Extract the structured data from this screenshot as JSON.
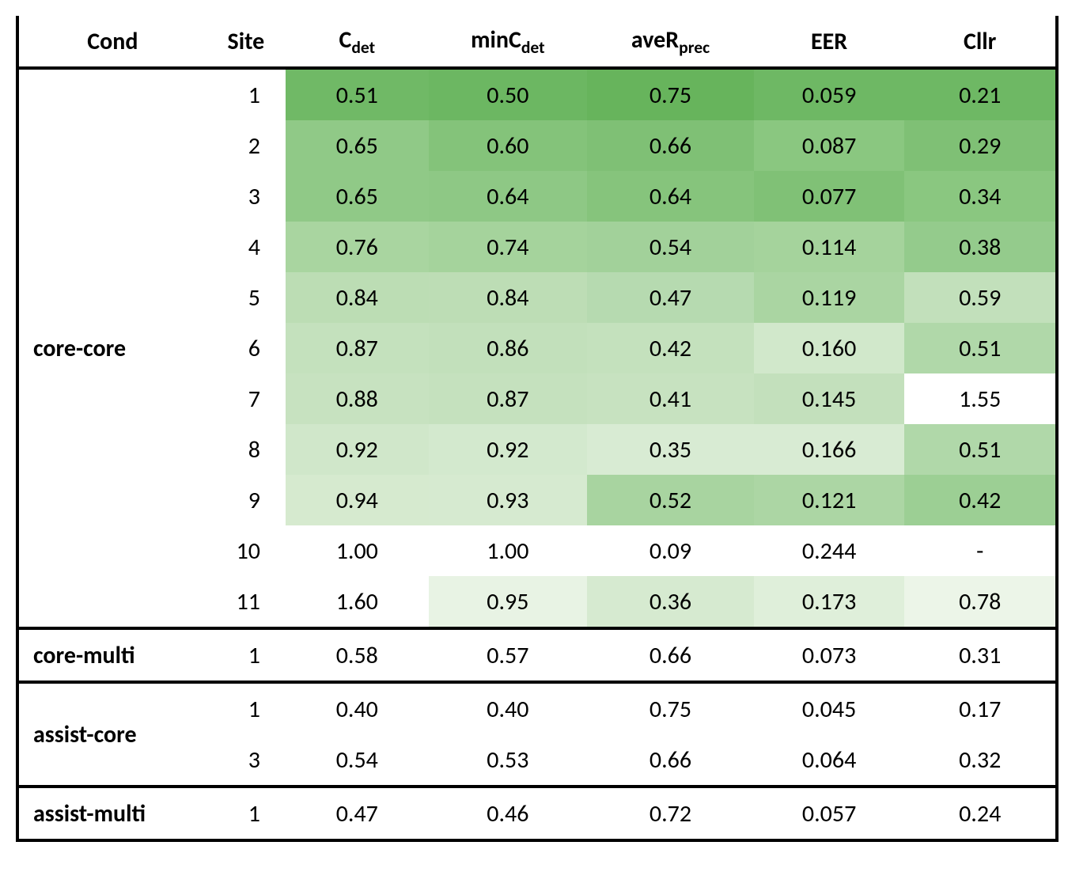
{
  "columns": {
    "cond": {
      "label": "Cond"
    },
    "site": {
      "label": "Site"
    },
    "cdet": {
      "label_main": "C",
      "label_sub": "det"
    },
    "mincdet": {
      "label_main": "minC",
      "label_sub": "det"
    },
    "averp": {
      "label_main": "aveR",
      "label_sub": "prec"
    },
    "eer": {
      "label": "EER"
    },
    "cllr": {
      "label": "Cllr"
    }
  },
  "heatmap_palette_note": "per-cell background hex captured directly; white = #ffffff",
  "groups": [
    {
      "cond": "core-core",
      "separator_before": false,
      "rows": [
        {
          "site": "1",
          "cdet": {
            "v": "0.51",
            "bg": "#70b966"
          },
          "mincdet": {
            "v": "0.50",
            "bg": "#6cb762"
          },
          "averp": {
            "v": "0.75",
            "bg": "#67b45c"
          },
          "eer": {
            "v": "0.059",
            "bg": "#6eb864"
          },
          "cllr": {
            "v": "0.21",
            "bg": "#6eb864"
          }
        },
        {
          "site": "2",
          "cdet": {
            "v": "0.65",
            "bg": "#90c987"
          },
          "mincdet": {
            "v": "0.60",
            "bg": "#84c37a"
          },
          "averp": {
            "v": "0.66",
            "bg": "#7fc075"
          },
          "eer": {
            "v": "0.087",
            "bg": "#8ac780"
          },
          "cllr": {
            "v": "0.29",
            "bg": "#7fc075"
          }
        },
        {
          "site": "3",
          "cdet": {
            "v": "0.65",
            "bg": "#90c987"
          },
          "mincdet": {
            "v": "0.64",
            "bg": "#8ec885"
          },
          "averp": {
            "v": "0.64",
            "bg": "#86c47c"
          },
          "eer": {
            "v": "0.077",
            "bg": "#80c176"
          },
          "cllr": {
            "v": "0.34",
            "bg": "#8ac780"
          }
        },
        {
          "site": "4",
          "cdet": {
            "v": "0.76",
            "bg": "#a9d5a0"
          },
          "mincdet": {
            "v": "0.74",
            "bg": "#a5d39c"
          },
          "averp": {
            "v": "0.54",
            "bg": "#a2d19a"
          },
          "eer": {
            "v": "0.114",
            "bg": "#a5d39c"
          },
          "cllr": {
            "v": "0.38",
            "bg": "#94cb8c"
          }
        },
        {
          "site": "5",
          "cdet": {
            "v": "0.84",
            "bg": "#bcddb4"
          },
          "mincdet": {
            "v": "0.84",
            "bg": "#bdddb5"
          },
          "averp": {
            "v": "0.47",
            "bg": "#b6dab0"
          },
          "eer": {
            "v": "0.119",
            "bg": "#aad5a2"
          },
          "cllr": {
            "v": "0.59",
            "bg": "#c2e0bb"
          }
        },
        {
          "site": "6",
          "cdet": {
            "v": "0.87",
            "bg": "#c4e1bd"
          },
          "mincdet": {
            "v": "0.86",
            "bg": "#c2e0bb"
          },
          "averp": {
            "v": "0.42",
            "bg": "#c4e1bd"
          },
          "eer": {
            "v": "0.160",
            "bg": "#d1e8cb"
          },
          "cllr": {
            "v": "0.51",
            "bg": "#b0d8a9"
          }
        },
        {
          "site": "7",
          "cdet": {
            "v": "0.88",
            "bg": "#c7e2c0"
          },
          "mincdet": {
            "v": "0.87",
            "bg": "#c5e1be"
          },
          "averp": {
            "v": "0.41",
            "bg": "#c7e2c0"
          },
          "eer": {
            "v": "0.145",
            "bg": "#c3e0bc"
          },
          "cllr": {
            "v": "1.55",
            "bg": "#ffffff"
          }
        },
        {
          "site": "8",
          "cdet": {
            "v": "0.92",
            "bg": "#d0e7ca"
          },
          "mincdet": {
            "v": "0.92",
            "bg": "#d3e9ce"
          },
          "averp": {
            "v": "0.35",
            "bg": "#d8ebd3"
          },
          "eer": {
            "v": "0.166",
            "bg": "#d8ebd3"
          },
          "cllr": {
            "v": "0.51",
            "bg": "#b0d8a9"
          }
        },
        {
          "site": "9",
          "cdet": {
            "v": "0.94",
            "bg": "#d6eacf"
          },
          "mincdet": {
            "v": "0.93",
            "bg": "#d6ead0"
          },
          "averp": {
            "v": "0.52",
            "bg": "#a8d4a0"
          },
          "eer": {
            "v": "0.121",
            "bg": "#acd6a4"
          },
          "cllr": {
            "v": "0.42",
            "bg": "#9ccf94"
          }
        },
        {
          "site": "10",
          "cdet": {
            "v": "1.00",
            "bg": "#ffffff"
          },
          "mincdet": {
            "v": "1.00",
            "bg": "#ffffff"
          },
          "averp": {
            "v": "0.09",
            "bg": "#ffffff"
          },
          "eer": {
            "v": "0.244",
            "bg": "#ffffff"
          },
          "cllr": {
            "v": "-",
            "bg": "#ffffff"
          }
        },
        {
          "site": "11",
          "cdet": {
            "v": "1.60",
            "bg": "#ffffff"
          },
          "mincdet": {
            "v": "0.95",
            "bg": "#e8f3e4"
          },
          "averp": {
            "v": "0.36",
            "bg": "#d6ead0"
          },
          "eer": {
            "v": "0.173",
            "bg": "#dfefda"
          },
          "cllr": {
            "v": "0.78",
            "bg": "#ecf5e8"
          }
        }
      ]
    },
    {
      "cond": "core-multi",
      "separator_before": true,
      "rows": [
        {
          "site": "1",
          "cdet": {
            "v": "0.58",
            "bg": "#ffffff"
          },
          "mincdet": {
            "v": "0.57",
            "bg": "#ffffff"
          },
          "averp": {
            "v": "0.66",
            "bg": "#ffffff"
          },
          "eer": {
            "v": "0.073",
            "bg": "#ffffff"
          },
          "cllr": {
            "v": "0.31",
            "bg": "#ffffff"
          }
        }
      ]
    },
    {
      "cond": "assist-core",
      "separator_before": true,
      "rows": [
        {
          "site": "1",
          "cdet": {
            "v": "0.40",
            "bg": "#ffffff"
          },
          "mincdet": {
            "v": "0.40",
            "bg": "#ffffff"
          },
          "averp": {
            "v": "0.75",
            "bg": "#ffffff"
          },
          "eer": {
            "v": "0.045",
            "bg": "#ffffff"
          },
          "cllr": {
            "v": "0.17",
            "bg": "#ffffff"
          }
        },
        {
          "site": "3",
          "cdet": {
            "v": "0.54",
            "bg": "#ffffff"
          },
          "mincdet": {
            "v": "0.53",
            "bg": "#ffffff"
          },
          "averp": {
            "v": "0.66",
            "bg": "#ffffff"
          },
          "eer": {
            "v": "0.064",
            "bg": "#ffffff"
          },
          "cllr": {
            "v": "0.32",
            "bg": "#ffffff"
          }
        }
      ]
    },
    {
      "cond": "assist-multi",
      "separator_before": true,
      "rows": [
        {
          "site": "1",
          "cdet": {
            "v": "0.47",
            "bg": "#ffffff"
          },
          "mincdet": {
            "v": "0.46",
            "bg": "#ffffff"
          },
          "averp": {
            "v": "0.72",
            "bg": "#ffffff"
          },
          "eer": {
            "v": "0.057",
            "bg": "#ffffff"
          },
          "cllr": {
            "v": "0.24",
            "bg": "#ffffff"
          }
        }
      ]
    }
  ]
}
